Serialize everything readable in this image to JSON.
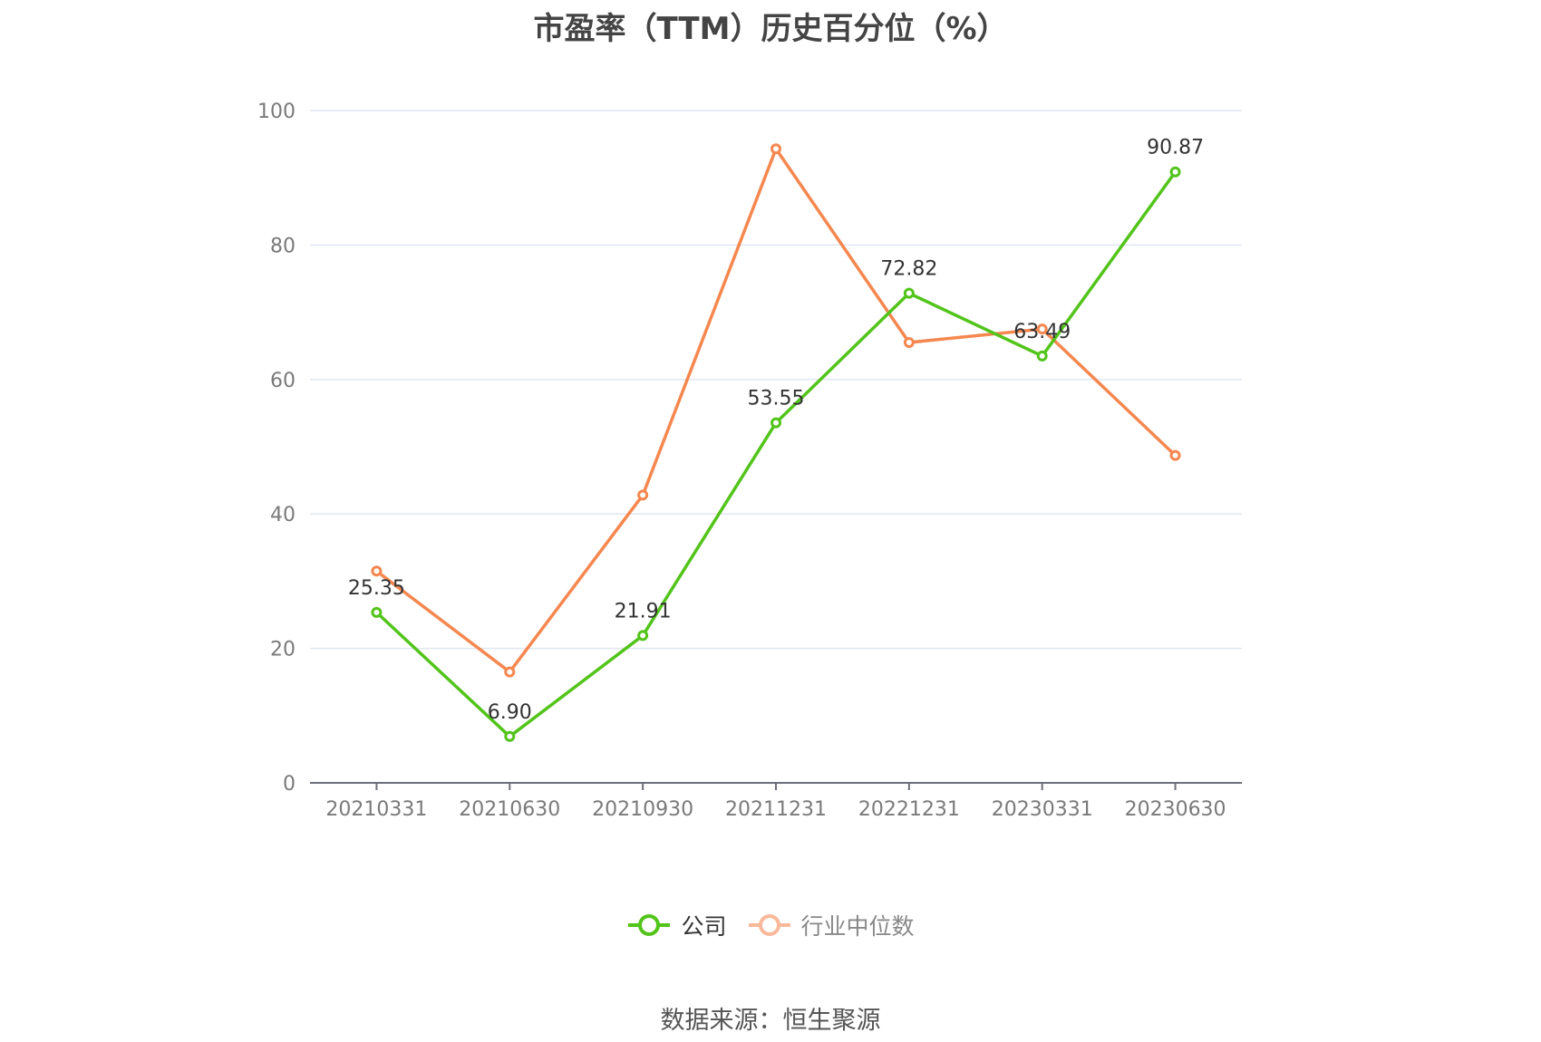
{
  "title": "市盈率（TTM）历史百分位（%）",
  "source": "数据来源：恒生聚源",
  "colors": {
    "company": "#52c41a",
    "industry": "#f5874f",
    "grid": "#e0e6f1",
    "axis": "#6e7079"
  },
  "legend": [
    {
      "label": "公司",
      "icon": "circle-line-icon",
      "color": "#52c41a"
    },
    {
      "label": "行业中位数",
      "icon": "circle-line-icon",
      "color": "#f9b99a"
    }
  ],
  "chart_data": {
    "type": "line",
    "title": "市盈率（TTM）历史百分位（%）",
    "categories": [
      "20210331",
      "20210630",
      "20210930",
      "20211231",
      "20221231",
      "20230331",
      "20230630"
    ],
    "series": [
      {
        "name": "公司",
        "values": [
          25.35,
          6.9,
          21.91,
          53.55,
          72.82,
          63.49,
          90.87
        ],
        "labels": [
          "25.35",
          "6.90",
          "21.91",
          "53.55",
          "72.82",
          "63.49",
          "90.87"
        ]
      },
      {
        "name": "行业中位数",
        "values": [
          31.5,
          16.5,
          42.8,
          94.3,
          65.5,
          67.5,
          48.7
        ]
      }
    ],
    "ylim": [
      0,
      100
    ],
    "yticks": [
      0,
      20,
      40,
      60,
      80,
      100
    ],
    "grid": true,
    "legend_position": "bottom"
  }
}
